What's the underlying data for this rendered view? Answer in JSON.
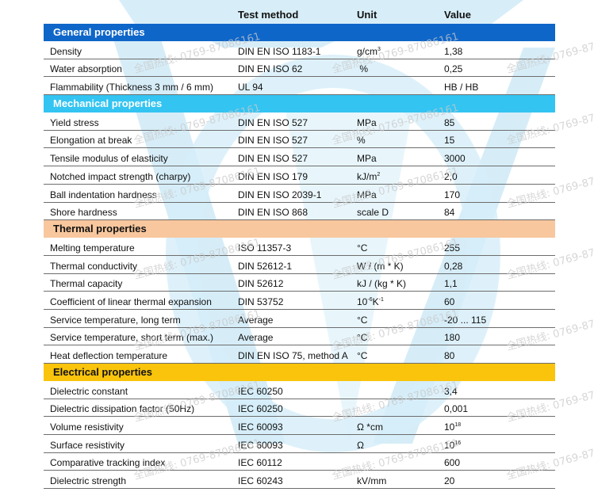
{
  "header": {
    "col_property": "",
    "col_method": "Test method",
    "col_unit": "Unit",
    "col_value": "Value"
  },
  "sections": [
    {
      "title": "General properties",
      "theme": "general",
      "rows": [
        {
          "property": "Density",
          "method": "DIN EN ISO 1183-1",
          "unit": "g/cm",
          "unit_sup": "3",
          "value": "1,38"
        },
        {
          "property": "Water absorption",
          "method": "DIN EN ISO 62",
          "unit": " %",
          "value": "0,25"
        },
        {
          "property": "Flammability (Thickness 3 mm / 6 mm)",
          "method": "UL 94",
          "unit": "",
          "value": "HB / HB"
        }
      ]
    },
    {
      "title": "Mechanical properties",
      "theme": "mechanical",
      "rows": [
        {
          "property": "Yield stress",
          "method": "DIN EN ISO 527",
          "unit": "MPa",
          "value": "85"
        },
        {
          "property": "Elongation at break",
          "method": "DIN EN ISO 527",
          "unit": "%",
          "value": "15"
        },
        {
          "property": "Tensile modulus of elasticity",
          "method": "DIN EN ISO 527",
          "unit": "MPa",
          "value": "3000"
        },
        {
          "property": "Notched impact strength (charpy)",
          "method": "DIN EN ISO 179",
          "unit": "kJ/m",
          "unit_sup": "2",
          "value": "2,0"
        },
        {
          "property": "Ball indentation hardness",
          "method": "DIN EN ISO 2039-1",
          "unit": "MPa",
          "value": "170"
        },
        {
          "property": "Shore hardness",
          "method": "DIN EN ISO 868",
          "unit": "scale D",
          "value": "84"
        }
      ]
    },
    {
      "title": "Thermal properties",
      "theme": "thermal",
      "rows": [
        {
          "property": "Melting temperature",
          "method": "ISO 11357-3",
          "unit": "°C",
          "value": "255"
        },
        {
          "property": "Thermal conductivity",
          "method": "DIN 52612-1",
          "unit": "W / (m * K)",
          "value": "0,28"
        },
        {
          "property": "Thermal capacity",
          "method": "DIN 52612",
          "unit": "kJ / (kg * K)",
          "value": "1,1"
        },
        {
          "property": "Coefficient of linear thermal expansion",
          "method": "DIN 53752",
          "unit": "10",
          "unit_sup": "-6",
          "unit_tail": "K",
          "unit_sup2": "-1",
          "value": "60"
        },
        {
          "property": "Service temperature, long term",
          "method": "Average",
          "unit": "°C",
          "value": "-20 ... 115"
        },
        {
          "property": "Service temperature, short term (max.)",
          "method": "Average",
          "unit": "°C",
          "value": "180"
        },
        {
          "property": "Heat deflection temperature",
          "method": "DIN EN ISO 75, method A",
          "unit": "°C",
          "value": "80"
        }
      ]
    },
    {
      "title": "Electrical properties",
      "theme": "electrical",
      "rows": [
        {
          "property": "Dielectric constant",
          "method": "IEC 60250",
          "unit": "",
          "value": "3,4"
        },
        {
          "property": "Dielectric dissipation factor (50Hz)",
          "method": "IEC 60250",
          "unit": "",
          "value": "0,001"
        },
        {
          "property": "Volume resistivity",
          "method": "IEC 60093",
          "unit": "Ω *cm",
          "value": "10",
          "value_sup": "18"
        },
        {
          "property": "Surface resistivity",
          "method": "IEC 60093",
          "unit": "Ω",
          "value": "10",
          "value_sup": "16"
        },
        {
          "property": "Comparative tracking index",
          "method": "IEC 60112",
          "unit": "",
          "value": "600"
        },
        {
          "property": "Dielectric strength",
          "method": "IEC 60243",
          "unit": "kV/mm",
          "value": "20"
        }
      ]
    }
  ],
  "watermark": {
    "text": "全国热线: 0769-87086161",
    "color": "#c9c9c9",
    "logo_color": "#cfe9f7"
  }
}
